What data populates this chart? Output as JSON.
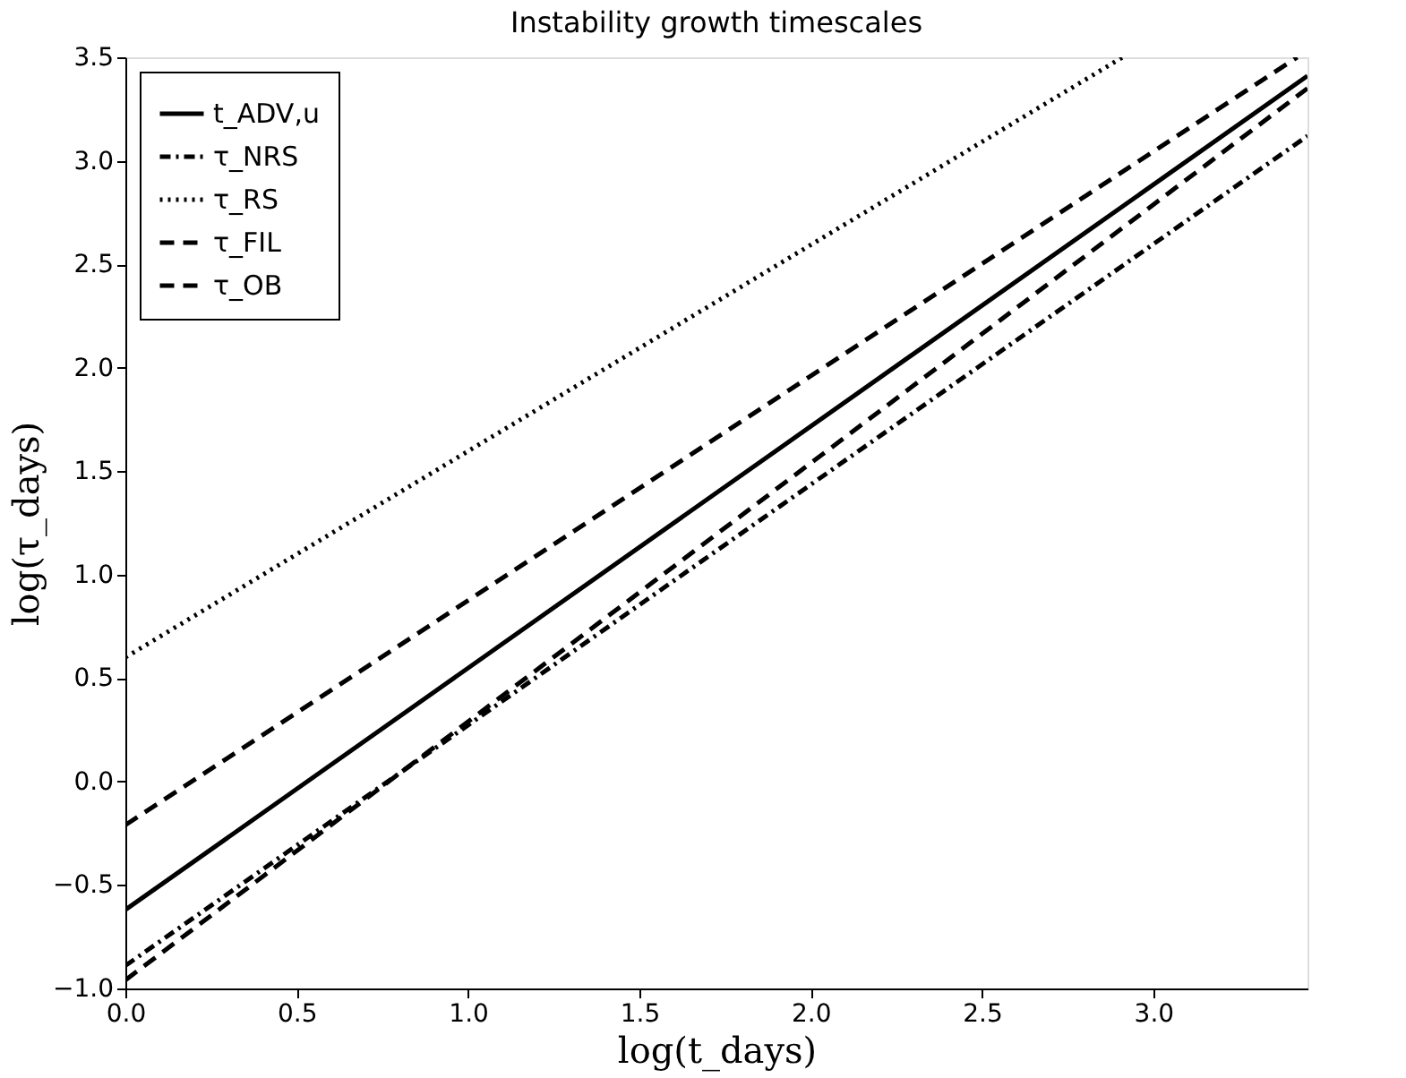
{
  "chart_data": {
    "type": "line",
    "title": "Instability growth timescales",
    "xlabel": "log(t_days)",
    "ylabel": "log(τ_days)",
    "series": [
      {
        "name": "t_ADV,u",
        "color": "#000000",
        "line_style": "solid",
        "x": [
          0,
          3.45
        ],
        "values": [
          -0.62,
          3.41
        ]
      },
      {
        "name": "τ_NRS",
        "color": "#000000",
        "line_style": "dashdot",
        "x": [
          0,
          3.45
        ],
        "values": [
          -0.89,
          3.12
        ]
      },
      {
        "name": "τ_RS",
        "color": "#000000",
        "line_style": "dotted",
        "x": [
          0,
          2.91
        ],
        "values": [
          0.6,
          3.5
        ]
      },
      {
        "name": "τ_FIL",
        "color": "#000000",
        "line_style": "dashed",
        "x": [
          0,
          3.45
        ],
        "values": [
          -0.96,
          3.35
        ]
      },
      {
        "name": "τ_OB",
        "color": "#000000",
        "line_style": "dashed",
        "x": [
          0,
          3.42
        ],
        "values": [
          -0.21,
          3.5
        ]
      }
    ],
    "xlim": [
      0,
      3.45
    ],
    "ylim": [
      -1.0,
      3.5
    ],
    "xticks": [
      {
        "value": 0,
        "label": "0.0"
      },
      0.5,
      {
        "value": 1,
        "label": "1.0"
      },
      1.5,
      {
        "value": 2,
        "label": "2.0"
      },
      2.5,
      {
        "value": 3,
        "label": "3.0"
      }
    ],
    "yticks": [
      {
        "value": -1,
        "label": "−1.0"
      },
      {
        "value": -0.5,
        "label": "−0.5"
      },
      {
        "value": 0,
        "label": "0.0"
      },
      0.5,
      {
        "value": 1,
        "label": "1.0"
      },
      1.5,
      {
        "value": 2,
        "label": "2.0"
      },
      2.5,
      {
        "value": 3,
        "label": "3.0"
      },
      3.5
    ],
    "grid": false,
    "legend": "top left",
    "marker": "none"
  }
}
